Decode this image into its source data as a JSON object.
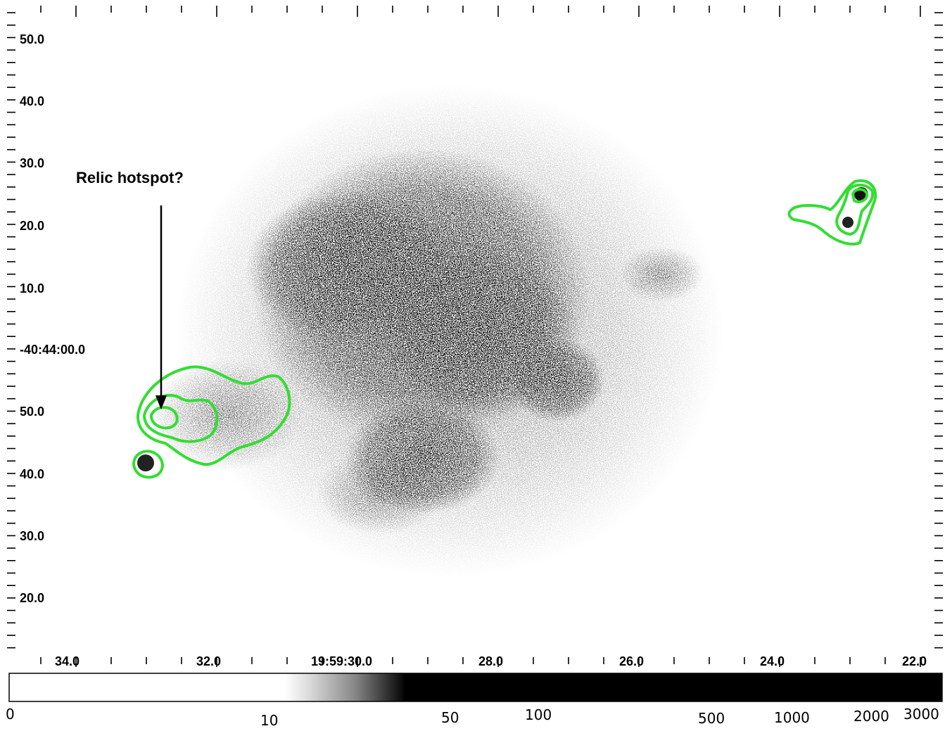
{
  "image": {
    "annotation": "Relic hotspot?",
    "dec_ticks": [
      "50.0",
      "40.0",
      "30.0",
      "20.0",
      "10.0",
      "-40:44:00.0",
      "50.0",
      "40.0",
      "30.0",
      "20.0"
    ],
    "ra_ticks": [
      "34.0",
      "32.0",
      "19:59:30.0",
      "28.0",
      "26.0",
      "24.0",
      "22.0"
    ],
    "contour_color": "#33dd33"
  },
  "colorbar": {
    "labels": [
      "0",
      "10",
      "50",
      "100",
      "500",
      "1000",
      "2000",
      "3000"
    ]
  }
}
